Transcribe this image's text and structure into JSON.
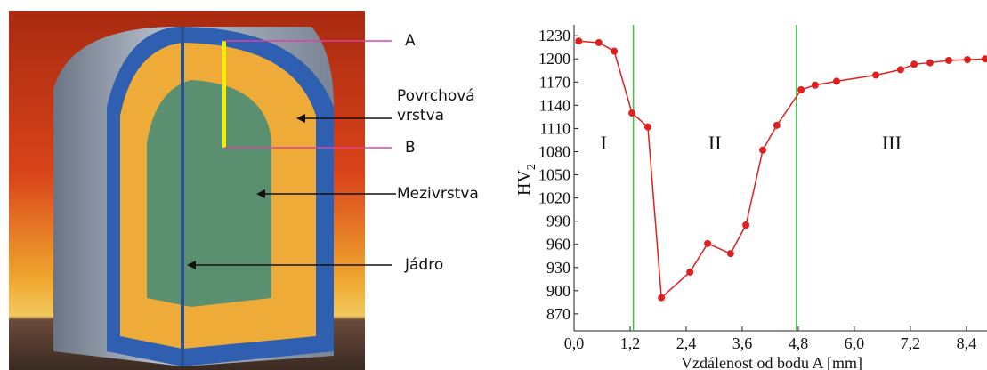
{
  "diagram": {
    "labels": {
      "a": "A",
      "b": "B",
      "surface": [
        "Povrchová",
        "vrstva"
      ],
      "middle": "Mezivrstva",
      "core": "Jádro"
    }
  },
  "chart_data": {
    "type": "line",
    "xlabel": "Vzdálenost od bodu A [mm]",
    "ylabel": "HV",
    "ylabel_sub": "2",
    "x": [
      0.1,
      0.53,
      0.86,
      1.24,
      1.58,
      1.87,
      2.48,
      2.86,
      3.35,
      3.68,
      4.04,
      4.34,
      4.86,
      5.16,
      5.62,
      6.46,
      6.99,
      7.28,
      7.62,
      8.02,
      8.42,
      8.8
    ],
    "series": [
      {
        "color": "#e0201e",
        "values": [
          1223,
          1221,
          1210,
          1130,
          1112,
          891,
          924,
          961,
          948,
          985,
          1082,
          1114,
          1160,
          1166,
          1171,
          1179,
          1186,
          1193,
          1195,
          1198,
          1199,
          1200
        ]
      }
    ],
    "xlim": [
      0,
      8.84
    ],
    "ylim": [
      848,
      1244
    ],
    "xticks": [
      {
        "value": 0,
        "label": "0,0"
      },
      {
        "value": 1.2,
        "label": "1,2"
      },
      {
        "value": 2.4,
        "label": "2,4"
      },
      {
        "value": 3.6,
        "label": "3,6"
      },
      {
        "value": 4.8,
        "label": "4,8"
      },
      {
        "value": 6.0,
        "label": "6,0"
      },
      {
        "value": 7.2,
        "label": "7,2"
      },
      {
        "value": 8.4,
        "label": "8,4"
      }
    ],
    "yticks": [
      870,
      900,
      930,
      960,
      990,
      1020,
      1050,
      1080,
      1110,
      1140,
      1170,
      1200,
      1230
    ],
    "vlines": [
      1.27,
      4.76
    ],
    "vline_color": "#3cc83c",
    "regions": [
      "I",
      "II",
      "III"
    ]
  }
}
